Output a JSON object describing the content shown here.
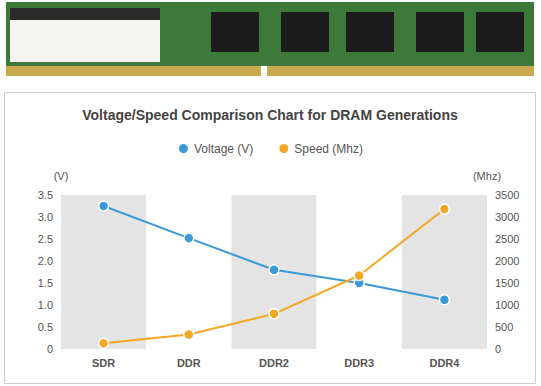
{
  "chart_data": {
    "type": "line",
    "title": "Voltage/Speed Comparison Chart for DRAM Generations",
    "categories": [
      "SDR",
      "DDR",
      "DDR2",
      "DDR3",
      "DDR4"
    ],
    "series": [
      {
        "name": "Voltage (V)",
        "color": "#3a9ad9",
        "marker": "circle",
        "values": [
          3.25,
          2.52,
          1.8,
          1.5,
          1.12
        ]
      },
      {
        "name": "Speed (Mhz)",
        "color": "#f5a623",
        "marker": "circle",
        "axis": "y2",
        "values": [
          130,
          330,
          800,
          1670,
          3180
        ]
      }
    ],
    "ylabel": "(V)",
    "y2label": "(Mhz)",
    "ylim": [
      0,
      3.5
    ],
    "yticks": [
      0,
      0.5,
      {
        "value": 1,
        "label": "1.0"
      },
      1.5,
      {
        "value": 2,
        "label": "2.0"
      },
      2.5,
      {
        "value": 3,
        "label": "3.0"
      },
      3.5
    ],
    "y2lim": [
      0,
      3500
    ],
    "y2ticks": [
      0,
      500,
      1000,
      1500,
      2000,
      2500,
      3000,
      3500
    ],
    "grid": false,
    "legend": "top"
  }
}
